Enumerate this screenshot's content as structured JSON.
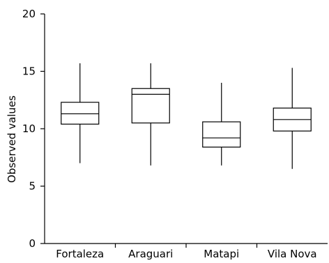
{
  "chart_data": {
    "type": "boxplot",
    "ylabel": "Observed values",
    "xlabel": "",
    "ylim": [
      0,
      20
    ],
    "yticks": [
      0,
      5,
      10,
      15,
      20
    ],
    "grid": false,
    "categories": [
      "Fortaleza",
      "Araguari",
      "Matapi",
      "Vila Nova"
    ],
    "boxes": [
      {
        "category": "Fortaleza",
        "min": 7.0,
        "q1": 10.4,
        "median": 11.3,
        "q3": 12.3,
        "max": 15.7
      },
      {
        "category": "Araguari",
        "min": 6.8,
        "q1": 10.5,
        "median": 13.0,
        "q3": 13.5,
        "max": 15.7
      },
      {
        "category": "Matapi",
        "min": 6.8,
        "q1": 8.4,
        "median": 9.2,
        "q3": 10.6,
        "max": 14.0
      },
      {
        "category": "Vila Nova",
        "min": 6.5,
        "q1": 9.8,
        "median": 10.8,
        "q3": 11.8,
        "max": 15.3
      }
    ]
  }
}
